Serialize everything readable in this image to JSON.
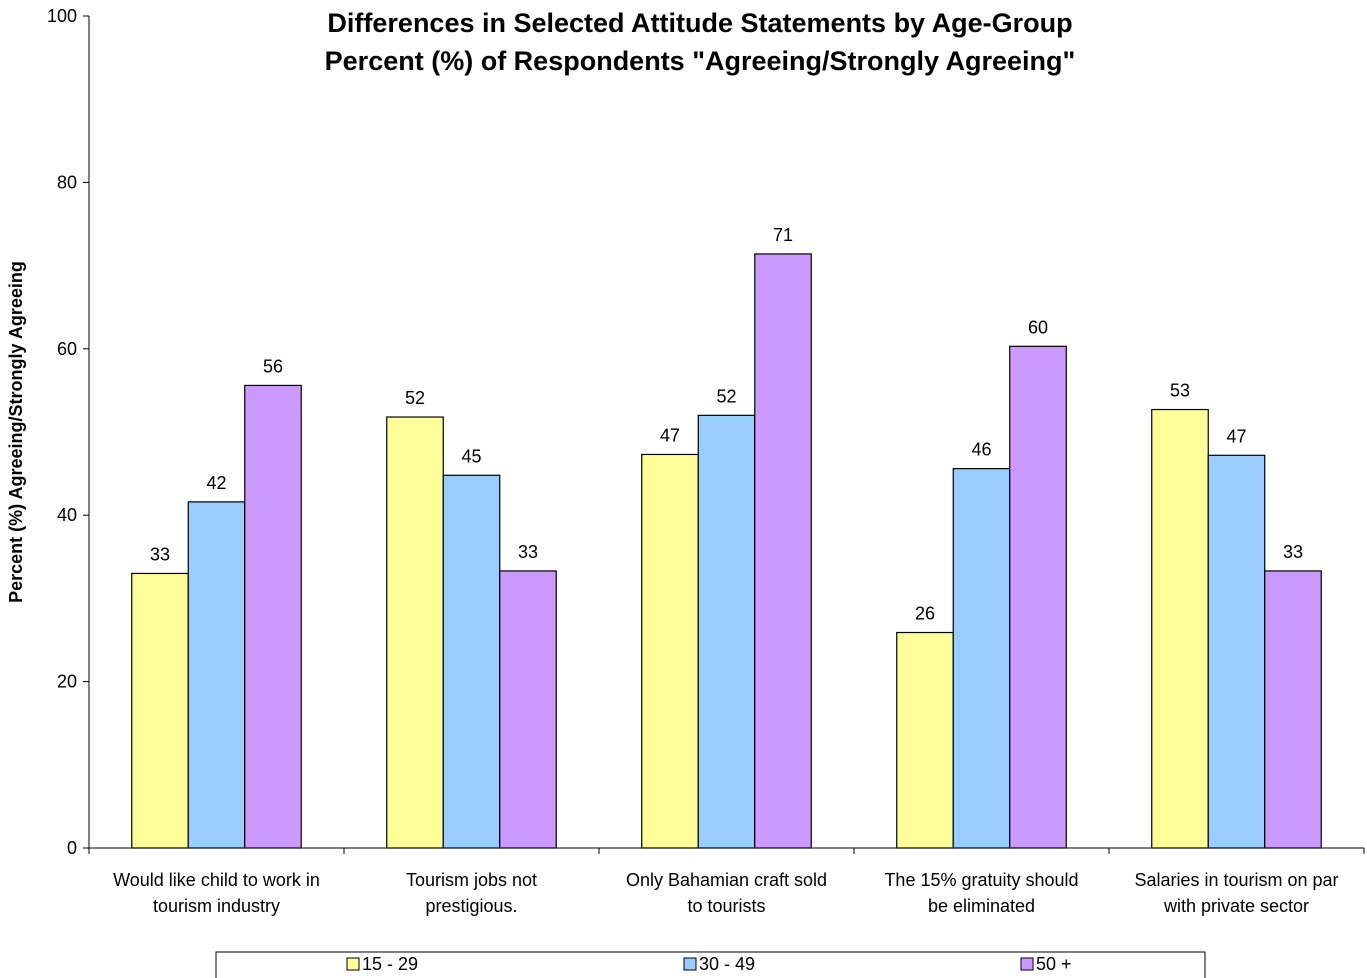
{
  "chart_data": {
    "type": "bar",
    "title": "Differences in Selected Attitude Statements by Age-Group",
    "subtitle": "Percent (%) of Respondents \"Agreeing/Strongly Agreeing\"",
    "xlabel": "",
    "ylabel": "Percent (%) Agreeing/Strongly Agreeing",
    "ylim": [
      0,
      100
    ],
    "yticks": [
      0,
      20,
      40,
      60,
      80,
      100
    ],
    "grid": false,
    "legend_position": "bottom",
    "categories": [
      [
        "Would like child to work in",
        "tourism industry"
      ],
      [
        "Tourism jobs not",
        "prestigious."
      ],
      [
        "Only Bahamian craft sold",
        "to tourists"
      ],
      [
        "The 15% gratuity should",
        "be eliminated"
      ],
      [
        "Salaries in tourism on par",
        "with private sector"
      ]
    ],
    "series": [
      {
        "name": "15 - 29",
        "color": "#FFFF99",
        "values": [
          33.0,
          51.8,
          47.3,
          25.9,
          52.7
        ],
        "labels": [
          "33",
          "52",
          "47",
          "26",
          "53"
        ]
      },
      {
        "name": "30 - 49",
        "color": "#99CCFF",
        "values": [
          41.6,
          44.8,
          52.0,
          45.6,
          47.2
        ],
        "labels": [
          "42",
          "45",
          "52",
          "46",
          "47"
        ]
      },
      {
        "name": "50 +",
        "color": "#CC99FF",
        "values": [
          55.6,
          33.3,
          71.4,
          60.3,
          33.3
        ],
        "labels": [
          "56",
          "33",
          "71",
          "60",
          "33"
        ]
      }
    ]
  }
}
